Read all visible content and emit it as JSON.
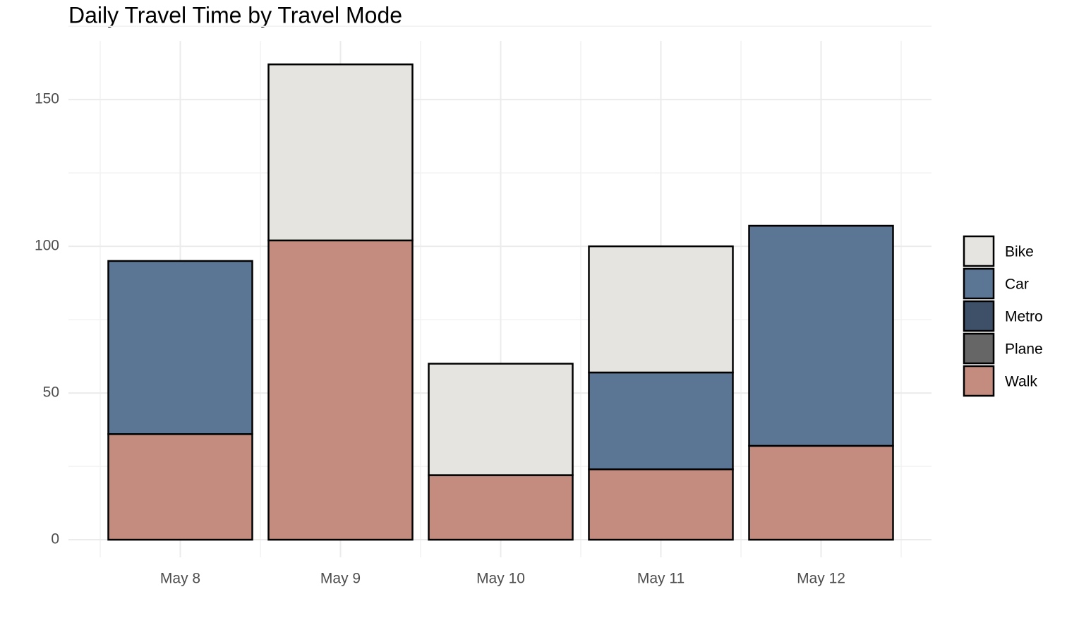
{
  "chart_data": {
    "type": "stacked-bar",
    "title": "Daily Travel Time by Travel Mode",
    "categories": [
      "May 8",
      "May 9",
      "May 10",
      "May 11",
      "May 12"
    ],
    "series": [
      {
        "name": "Bike",
        "color": "#e5e4e0",
        "values": [
          0,
          60,
          38,
          43,
          0
        ]
      },
      {
        "name": "Car",
        "color": "#5b7594",
        "values": [
          59,
          0,
          0,
          33,
          75
        ]
      },
      {
        "name": "Metro",
        "color": "#3d5068",
        "values": [
          0,
          0,
          0,
          0,
          0
        ]
      },
      {
        "name": "Plane",
        "color": "#666666",
        "values": [
          0,
          0,
          0,
          0,
          0
        ]
      },
      {
        "name": "Walk",
        "color": "#c38c7f",
        "values": [
          36,
          102,
          22,
          24,
          32
        ]
      }
    ],
    "ylim": [
      -6,
      170
    ],
    "yticks": [
      0,
      50,
      100,
      150
    ],
    "grid": true,
    "legend": "right"
  }
}
